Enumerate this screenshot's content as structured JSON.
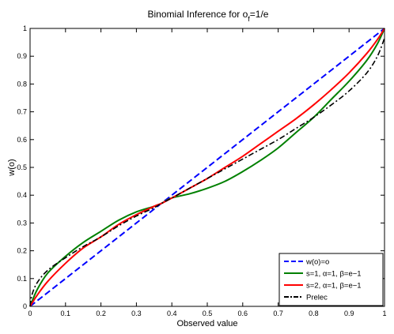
{
  "chart_data": {
    "type": "line",
    "title": {
      "prefix": "Binomial Inference for o",
      "subscript": "f",
      "suffix": "=1/e"
    },
    "xlabel": "Observed value",
    "ylabel": "w(o)",
    "xlim": [
      0,
      1
    ],
    "ylim": [
      0,
      1
    ],
    "xticks": [
      "0",
      "0.1",
      "0.2",
      "0.3",
      "0.4",
      "0.5",
      "0.6",
      "0.7",
      "0.8",
      "0.9",
      "1"
    ],
    "yticks": [
      "0",
      "0.1",
      "0.2",
      "0.3",
      "0.4",
      "0.5",
      "0.6",
      "0.7",
      "0.8",
      "0.9",
      "1"
    ],
    "grid": false,
    "legend_position": "bottom-right",
    "series": [
      {
        "name": "w(o)=o",
        "color": "#0000ff",
        "dash": "dashed",
        "x": [
          0,
          1
        ],
        "y": [
          0,
          1
        ]
      },
      {
        "name": "s=1, α=1, β=e−1",
        "color": "#008000",
        "dash": "solid",
        "x": [
          0,
          0.02,
          0.05,
          0.1,
          0.15,
          0.2,
          0.25,
          0.3,
          0.35,
          0.37,
          0.4,
          0.45,
          0.5,
          0.55,
          0.6,
          0.65,
          0.7,
          0.75,
          0.8,
          0.85,
          0.9,
          0.95,
          0.98,
          1
        ],
        "y": [
          0,
          0.06,
          0.12,
          0.18,
          0.23,
          0.27,
          0.31,
          0.34,
          0.36,
          0.37,
          0.39,
          0.405,
          0.425,
          0.45,
          0.485,
          0.525,
          0.57,
          0.625,
          0.68,
          0.745,
          0.81,
          0.885,
          0.945,
          1
        ]
      },
      {
        "name": "s=2, α=1, β=e−1",
        "color": "#ff0000",
        "dash": "solid",
        "x": [
          0,
          0.02,
          0.05,
          0.1,
          0.15,
          0.2,
          0.25,
          0.3,
          0.35,
          0.37,
          0.4,
          0.45,
          0.5,
          0.55,
          0.6,
          0.65,
          0.7,
          0.75,
          0.8,
          0.85,
          0.9,
          0.95,
          0.98,
          1
        ],
        "y": [
          0,
          0.04,
          0.09,
          0.155,
          0.21,
          0.25,
          0.295,
          0.33,
          0.36,
          0.37,
          0.39,
          0.425,
          0.46,
          0.5,
          0.54,
          0.585,
          0.63,
          0.675,
          0.725,
          0.78,
          0.84,
          0.91,
          0.96,
          1
        ]
      },
      {
        "name": "Prelec",
        "color": "#000000",
        "dash": "dashdot",
        "x": [
          0,
          0.005,
          0.02,
          0.05,
          0.1,
          0.15,
          0.2,
          0.25,
          0.3,
          0.35,
          0.37,
          0.4,
          0.45,
          0.5,
          0.55,
          0.6,
          0.65,
          0.7,
          0.75,
          0.8,
          0.85,
          0.9,
          0.95,
          0.98,
          1
        ],
        "y": [
          0,
          0.04,
          0.085,
          0.13,
          0.175,
          0.215,
          0.25,
          0.29,
          0.325,
          0.355,
          0.37,
          0.39,
          0.425,
          0.46,
          0.495,
          0.53,
          0.565,
          0.6,
          0.64,
          0.68,
          0.725,
          0.775,
          0.84,
          0.9,
          0.965
        ]
      }
    ]
  }
}
